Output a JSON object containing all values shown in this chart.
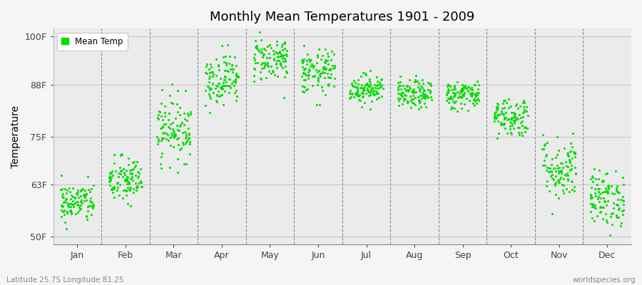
{
  "title": "Monthly Mean Temperatures 1901 - 2009",
  "ylabel": "Temperature",
  "xlabel_bottom_left": "Latitude 25.75 Longitude 81.25",
  "xlabel_bottom_right": "worldspecies.org",
  "ytick_labels": [
    "50F",
    "63F",
    "75F",
    "88F",
    "100F"
  ],
  "ytick_values": [
    50,
    63,
    75,
    88,
    100
  ],
  "ylim": [
    48,
    102
  ],
  "months": [
    "Jan",
    "Feb",
    "Mar",
    "Apr",
    "May",
    "Jun",
    "Jul",
    "Aug",
    "Sep",
    "Oct",
    "Nov",
    "Dec"
  ],
  "dot_color": "#00dd00",
  "bg_color": "#f5f5f5",
  "plot_bg_color": "#ebebeb",
  "legend_label": "Mean Temp",
  "n_years": 109,
  "monthly_mean_temps_F": [
    58.5,
    64.0,
    77.0,
    89.5,
    94.5,
    91.0,
    87.0,
    85.5,
    85.5,
    80.0,
    67.0,
    59.5
  ],
  "monthly_std_F": [
    2.5,
    3.0,
    4.0,
    3.2,
    2.8,
    2.8,
    1.8,
    1.8,
    1.8,
    2.5,
    4.0,
    3.5
  ],
  "figsize": [
    9.0,
    4.0
  ],
  "dpi": 100
}
